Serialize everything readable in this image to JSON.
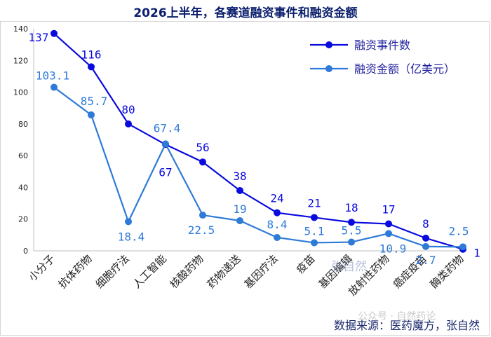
{
  "chart_data": {
    "type": "line",
    "title": "2026上半年，各赛道融资事件和融资金额",
    "categories": [
      "小分子",
      "抗体药物",
      "细胞疗法",
      "人工智能",
      "核酸药物",
      "药物递送",
      "基因疗法",
      "疫苗",
      "基因编辑",
      "放射性药物",
      "癌症疫苗",
      "酶类药物"
    ],
    "series": [
      {
        "name": "融资事件数",
        "color": "#0a0adf",
        "values": [
          137,
          116,
          80,
          67,
          56,
          38,
          24,
          21,
          18,
          17,
          8,
          1
        ],
        "labels": [
          "137",
          "116",
          "80",
          "67",
          "56",
          "38",
          "24",
          "21",
          "18",
          "17",
          "8",
          "1"
        ]
      },
      {
        "name": "融资金额（亿美元）",
        "color": "#2e7ad8",
        "values": [
          103.1,
          85.7,
          18.4,
          67.4,
          22.5,
          19,
          8.4,
          5.1,
          5.5,
          10.9,
          2.7,
          2.5
        ],
        "labels": [
          "103.1",
          "85.7",
          "18.4",
          "67.4",
          "22.5",
          "19",
          "8.4",
          "5.1",
          "5.5",
          "10.9",
          "2.7",
          "2.5"
        ]
      }
    ],
    "ylim": [
      0,
      140
    ],
    "yticks": [
      0,
      20,
      40,
      60,
      80,
      100,
      120,
      140
    ],
    "grid": false,
    "legend": "top-right"
  },
  "source_note": "数据来源：医药魔方，张自然",
  "watermark": {
    "author": "张自然",
    "account": "公众号 · 自然药论"
  }
}
